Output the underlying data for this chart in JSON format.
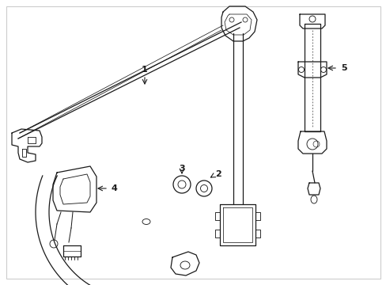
{
  "bg_color": "#ffffff",
  "line_color": "#1a1a1a",
  "lw": 0.9,
  "figsize": [
    4.89,
    3.6
  ],
  "dpi": 100,
  "border_color": "#cccccc"
}
